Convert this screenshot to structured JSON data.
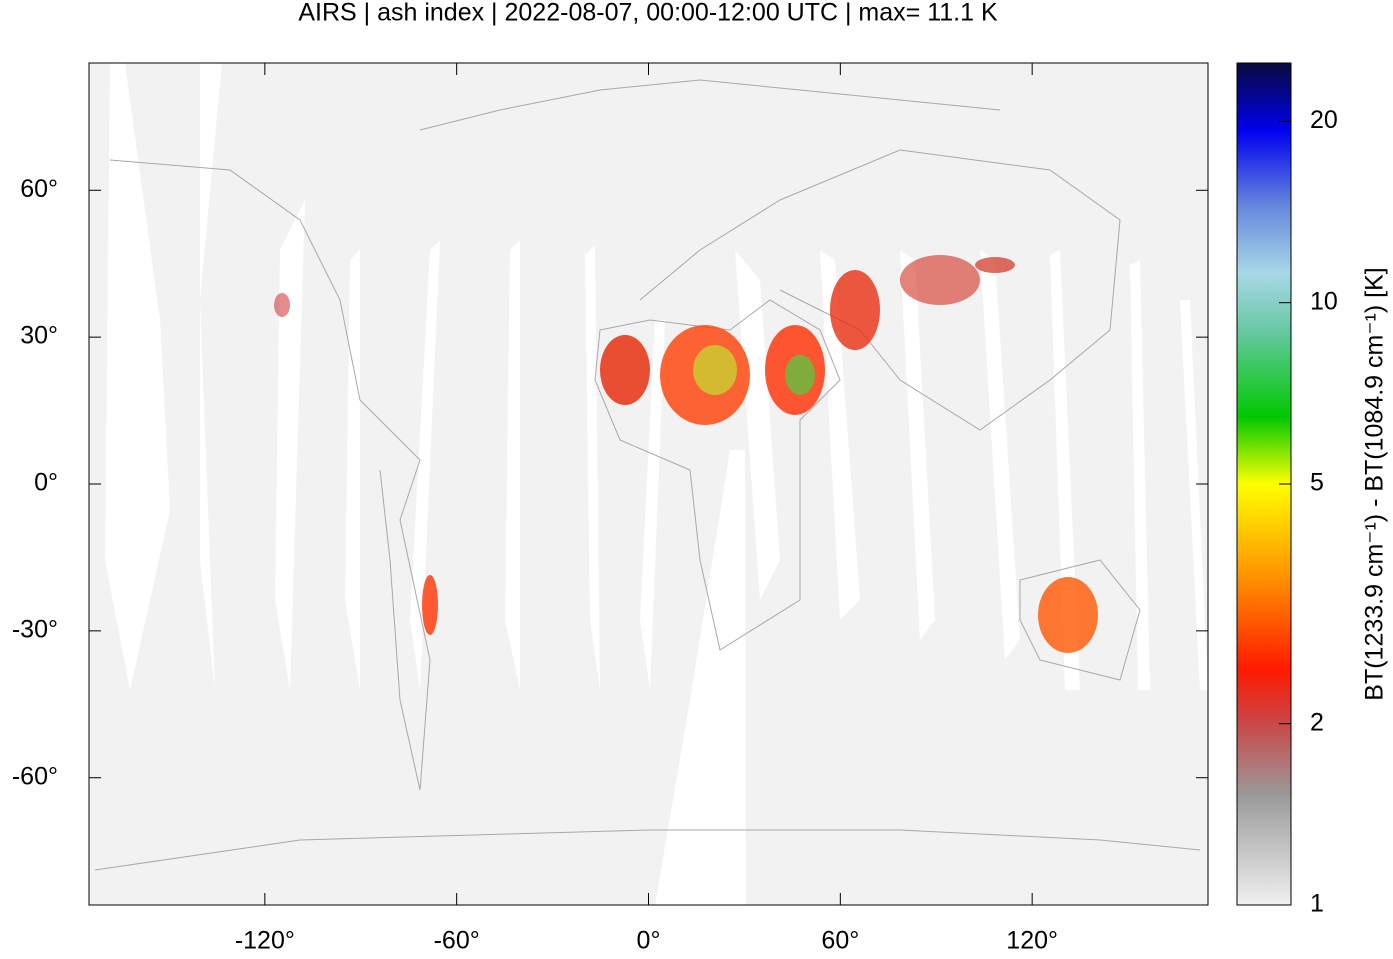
{
  "chart_data": {
    "type": "map",
    "title": "AIRS | ash index | 2022-08-07, 00:00-12:00 UTC | max= 11.1 K",
    "xlim": [
      -175,
      175
    ],
    "ylim": [
      -86,
      86
    ],
    "xticks": [
      {
        "value": -120,
        "label": "-120°"
      },
      {
        "value": -60,
        "label": "-60°"
      },
      {
        "value": 0,
        "label": "0°"
      },
      {
        "value": 60,
        "label": "60°"
      },
      {
        "value": 120,
        "label": "120°"
      }
    ],
    "yticks": [
      {
        "value": -60,
        "label": "-60°"
      },
      {
        "value": -30,
        "label": "-30°"
      },
      {
        "value": 0,
        "label": "0°"
      },
      {
        "value": 30,
        "label": "30°"
      },
      {
        "value": 60,
        "label": "60°"
      }
    ],
    "colorbar": {
      "label": "BT(1233.9 cm⁻¹) - BT(1084.9 cm⁻¹) [K]",
      "scale": "log",
      "lim": [
        1,
        25
      ],
      "ticks": [
        1,
        2,
        5,
        10,
        20
      ]
    }
  }
}
